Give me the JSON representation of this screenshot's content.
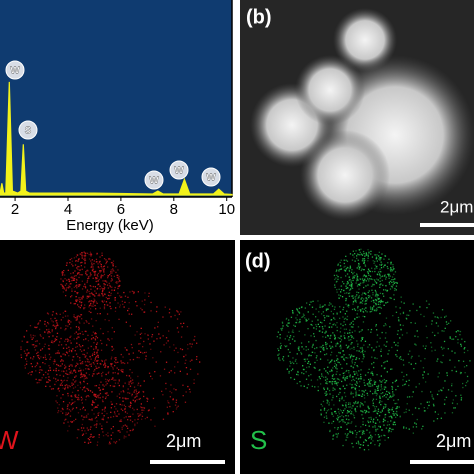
{
  "chart_data": {
    "type": "line",
    "x_label": "Energy (keV)",
    "x": [
      1.43,
      1.5,
      1.57,
      1.65,
      1.78,
      1.9,
      2.1,
      2.22,
      2.31,
      2.4,
      2.55,
      3,
      5,
      7.2,
      7.4,
      7.6,
      8.2,
      8.4,
      8.6,
      9.5,
      9.7,
      9.9,
      10.2
    ],
    "values": [
      1,
      6,
      1,
      1,
      58,
      2,
      1,
      2,
      26,
      2,
      1,
      1,
      1,
      0.5,
      2,
      0.5,
      0.5,
      8,
      0.5,
      0.5,
      3,
      0.5,
      0.3
    ],
    "color": "#f2f21a",
    "xlim": [
      1.43,
      10.2
    ],
    "xticks": [
      2,
      4,
      6,
      8,
      10
    ],
    "ylim": [
      0,
      100
    ],
    "peak_labels": [
      "W",
      "S",
      "W",
      "W",
      "W"
    ]
  },
  "panels": [
    {
      "label": "(b)",
      "scale": "2μm"
    },
    {
      "element": "W",
      "scale": "2μm"
    },
    {
      "label": "(d)",
      "element": "S",
      "scale": "2μm"
    }
  ]
}
